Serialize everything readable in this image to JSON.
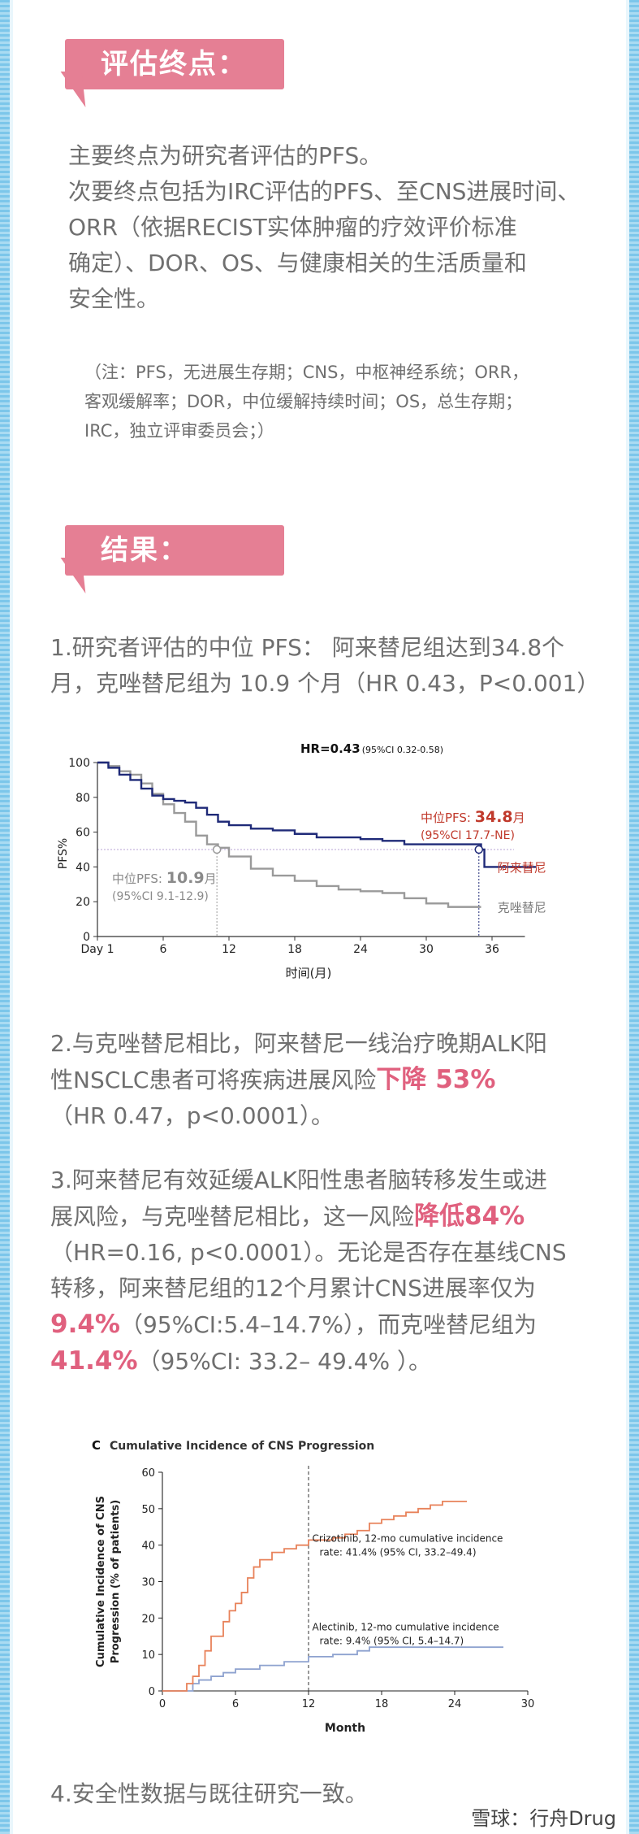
{
  "section1": {
    "heading": "评估终点：",
    "lines": [
      "主要终点为研究者评估的PFS。",
      "次要终点包括为IRC评估的PFS、至CNS进展时间、",
      "ORR（依据RECIST实体肿瘤的疗效评价标准",
      "确定）、DOR、OS、与健康相关的生活质量和",
      "安全性。"
    ],
    "note_lines": [
      "（注：PFS，无进展生存期；CNS，中枢神经系统；ORR，",
      "客观缓解率；DOR，中位缓解持续时间；OS，总生存期；",
      "IRC，独立评审委员会；）"
    ]
  },
  "section2": {
    "heading": "结果：",
    "r1_line1": "1.研究者评估的中位 PFS： 阿来替尼组达到34.8个",
    "r1_line2": "月，克唑替尼组为 10.9 个月（HR 0.43，P<0.001）",
    "r2_line1": "2.与克唑替尼相比，阿来替尼一线治疗晚期ALK阳",
    "r2_line2_a": "性NSCLC患者可将疾病进展风险",
    "r2_line2_hl": "下降 53%",
    "r2_line3": "（HR 0.47，p<0.0001）。",
    "r3_line1": "3.阿来替尼有效延缓ALK阳性患者脑转移发生或进",
    "r3_line2_a": "展风险，与克唑替尼相比，这一风险",
    "r3_line2_hl": "降低84%",
    "r3_line3": "（HR=0.16, p<0.0001）。无论是否存在基线CNS",
    "r3_line4": "转移，阿来替尼组的12个月累计CNS进展率仅为",
    "r3_line5_hl": "9.4%",
    "r3_line5_b": "（95%CI:5.4–14.7%），而克唑替尼组为",
    "r3_line6_hl": "41.4%",
    "r3_line6_b": "（95%CI: 33.2– 49.4% ）。",
    "r4": "4.安全性数据与既往研究一致。"
  },
  "watermark": "雪球：行舟Drug",
  "colors": {
    "accent_pink": "#e57f94",
    "alectinib_navy": "#1f2a78",
    "crizotinib_gray": "#9a9a9a",
    "crizotinib_orange": "#e8825a",
    "alectinib_blue": "#8ea2cf"
  },
  "chart_data": [
    {
      "type": "line",
      "title": "HR=0.43",
      "title_ci": "(95%CI 0.32-0.58)",
      "xlabel": "时间(月)",
      "ylabel": "PFS%",
      "xlim": [
        0,
        40
      ],
      "ylim": [
        0,
        100
      ],
      "x_ticks": [
        "Day 1",
        "6",
        "12",
        "18",
        "24",
        "30",
        "36"
      ],
      "x_tick_values": [
        0,
        6,
        12,
        18,
        24,
        30,
        36
      ],
      "y_ticks": [
        0,
        20,
        40,
        60,
        80,
        100
      ],
      "reference_line_y": 50,
      "series": [
        {
          "name": "阿来替尼",
          "color": "#1f2a78",
          "points": [
            [
              0,
              100
            ],
            [
              1,
              97
            ],
            [
              2,
              93
            ],
            [
              3,
              90
            ],
            [
              4,
              85
            ],
            [
              5,
              81
            ],
            [
              6,
              79
            ],
            [
              7,
              78
            ],
            [
              8,
              77
            ],
            [
              9,
              74
            ],
            [
              10,
              70
            ],
            [
              11,
              66
            ],
            [
              12,
              64
            ],
            [
              14,
              62
            ],
            [
              16,
              61
            ],
            [
              18,
              59
            ],
            [
              20,
              57
            ],
            [
              22,
              57
            ],
            [
              24,
              56
            ],
            [
              26,
              55
            ],
            [
              28,
              53
            ],
            [
              30,
              53
            ],
            [
              32,
              53
            ],
            [
              34,
              53
            ],
            [
              35,
              50
            ],
            [
              35.3,
              40
            ],
            [
              40,
              40
            ]
          ]
        },
        {
          "name": "克唑替尼",
          "color": "#9a9a9a",
          "points": [
            [
              0,
              100
            ],
            [
              1,
              98
            ],
            [
              2,
              95
            ],
            [
              3,
              93
            ],
            [
              4,
              88
            ],
            [
              5,
              82
            ],
            [
              6,
              76
            ],
            [
              7,
              71
            ],
            [
              8,
              66
            ],
            [
              9,
              58
            ],
            [
              10,
              53
            ],
            [
              11,
              51
            ],
            [
              12,
              46
            ],
            [
              14,
              39
            ],
            [
              16,
              35
            ],
            [
              18,
              32
            ],
            [
              20,
              29
            ],
            [
              22,
              27
            ],
            [
              24,
              26
            ],
            [
              26,
              25
            ],
            [
              28,
              22
            ],
            [
              30,
              19
            ],
            [
              32,
              17
            ],
            [
              35,
              17
            ]
          ]
        }
      ],
      "annotations": {
        "alec_median_label": "中位PFS: ",
        "alec_median_value": "34.8",
        "alec_median_unit": "月",
        "alec_ci": "(95%CI 17.7-NE)",
        "criz_median_label": "中位PFS: ",
        "criz_median_value": "10.9",
        "criz_median_unit": "月",
        "criz_ci": "(95%CI 9.1-12.9)"
      }
    },
    {
      "type": "line",
      "panel_letter": "C",
      "title": "Cumulative Incidence of CNS Progression",
      "xlabel": "Month",
      "ylabel_line1": "Cumulative Incidence of CNS",
      "ylabel_line2": "Progression (% of patients)",
      "xlim": [
        0,
        30
      ],
      "ylim": [
        0,
        60
      ],
      "x_ticks": [
        0,
        6,
        12,
        18,
        24,
        30
      ],
      "y_ticks": [
        0,
        10,
        20,
        30,
        40,
        50,
        60
      ],
      "reference_line_x": 12,
      "series": [
        {
          "name": "Crizotinib",
          "color": "#e8825a",
          "points": [
            [
              0,
              0
            ],
            [
              1.5,
              0
            ],
            [
              2,
              2
            ],
            [
              2.5,
              4
            ],
            [
              3,
              7
            ],
            [
              3.5,
              11
            ],
            [
              4,
              15
            ],
            [
              5,
              19
            ],
            [
              5.5,
              22
            ],
            [
              6,
              24
            ],
            [
              6.5,
              27
            ],
            [
              7,
              31
            ],
            [
              7.5,
              34
            ],
            [
              8,
              36
            ],
            [
              9,
              38
            ],
            [
              10,
              39
            ],
            [
              11,
              40
            ],
            [
              12,
              41.4
            ],
            [
              14,
              42
            ],
            [
              15,
              43
            ],
            [
              16,
              44
            ],
            [
              17,
              46
            ],
            [
              18,
              47
            ],
            [
              19,
              48
            ],
            [
              20,
              49
            ],
            [
              21,
              50
            ],
            [
              22,
              51
            ],
            [
              23,
              52
            ],
            [
              25,
              52
            ]
          ]
        },
        {
          "name": "Alectinib",
          "color": "#8ea2cf",
          "points": [
            [
              0,
              0
            ],
            [
              2,
              0
            ],
            [
              2.5,
              2
            ],
            [
              3,
              3
            ],
            [
              4,
              4
            ],
            [
              5,
              5
            ],
            [
              6,
              6
            ],
            [
              7,
              6
            ],
            [
              8,
              7
            ],
            [
              10,
              8
            ],
            [
              12,
              9.4
            ],
            [
              14,
              10
            ],
            [
              16,
              11
            ],
            [
              17,
              12
            ],
            [
              20,
              12
            ],
            [
              24,
              12
            ],
            [
              28,
              12
            ]
          ]
        }
      ],
      "annotations": {
        "criz_line1": "Crizotinib, 12-mo cumulative incidence",
        "criz_line2": "rate: 41.4% (95% CI, 33.2–49.4)",
        "alec_line1": "Alectinib, 12-mo cumulative incidence",
        "alec_line2": "rate: 9.4% (95% CI, 5.4–14.7)"
      }
    }
  ]
}
